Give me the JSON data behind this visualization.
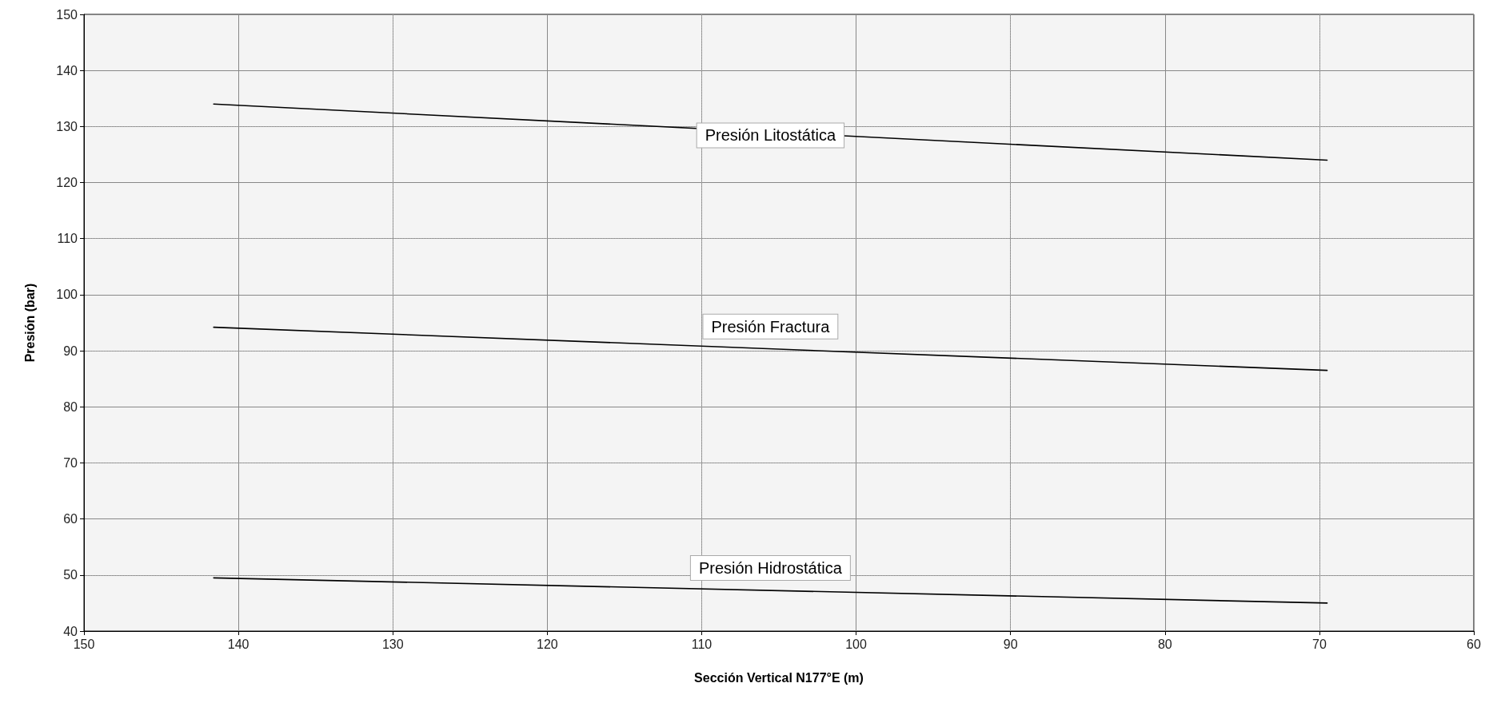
{
  "chart_data": {
    "type": "line",
    "xlabel": "Sección Vertical N177°E (m)",
    "ylabel": "Presión (bar)",
    "xlim": [
      150,
      60
    ],
    "xticks": [
      150,
      140,
      130,
      120,
      110,
      100,
      90,
      80,
      70,
      60
    ],
    "ylim": [
      40,
      150
    ],
    "yticks": [
      40,
      50,
      60,
      70,
      80,
      90,
      100,
      110,
      120,
      130,
      140,
      150
    ],
    "grid": true,
    "marker": "none",
    "line_style": "solid",
    "x": [
      141.6,
      69.5
    ],
    "series": [
      {
        "name": "Presión Litostática",
        "color": "#000000",
        "values": [
          134,
          124
        ]
      },
      {
        "name": "Presión Fractura",
        "color": "#000000",
        "values": [
          94.2,
          86.5
        ]
      },
      {
        "name": "Presión Hidrostática",
        "color": "#000000",
        "values": [
          49.5,
          45
        ]
      }
    ]
  }
}
